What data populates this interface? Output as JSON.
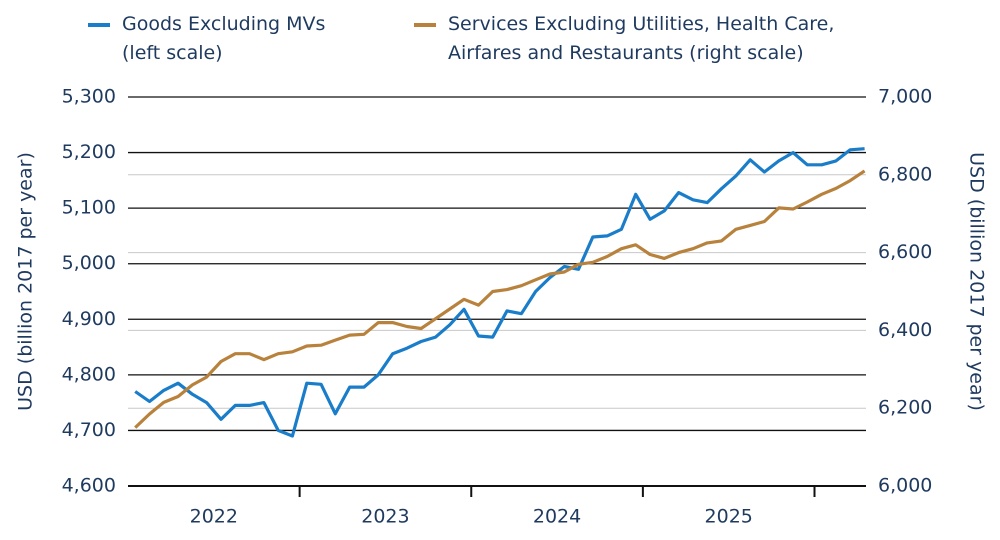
{
  "chart_data": {
    "type": "line",
    "y_label": "USD (billion 2017 per year)",
    "y2_label": "USD (billion 2017 per year)",
    "year_labels": [
      "2022",
      "2023",
      "2024",
      "2025"
    ],
    "year_label_x": [
      2022.5,
      2023.5,
      2024.5,
      2025.5
    ],
    "xlim": [
      2022,
      2026.3
    ],
    "xticks": [
      2023,
      2024,
      2025,
      2026
    ],
    "ylim": [
      4600,
      5300
    ],
    "yticks": [
      {
        "value": 4600,
        "label": "4,600"
      },
      {
        "value": 4700,
        "label": "4,700"
      },
      {
        "value": 4800,
        "label": "4,800"
      },
      {
        "value": 4900,
        "label": "4,900"
      },
      {
        "value": 5000,
        "label": "5,000"
      },
      {
        "value": 5100,
        "label": "5,100"
      },
      {
        "value": 5200,
        "label": "5,200"
      },
      {
        "value": 5300,
        "label": "5,300"
      }
    ],
    "y2lim": [
      6000,
      7000
    ],
    "y2ticks": [
      {
        "value": 6000,
        "label": "6,000"
      },
      {
        "value": 6200,
        "label": "6,200"
      },
      {
        "value": 6400,
        "label": "6,400"
      },
      {
        "value": 6600,
        "label": "6,600"
      },
      {
        "value": 6800,
        "label": "6,800"
      },
      {
        "value": 7000,
        "label": "7,000"
      }
    ],
    "grid": true,
    "y2grid": true,
    "x": [
      2022.042,
      2022.125,
      2022.208,
      2022.292,
      2022.375,
      2022.458,
      2022.542,
      2022.625,
      2022.708,
      2022.792,
      2022.875,
      2022.958,
      2023.042,
      2023.125,
      2023.208,
      2023.292,
      2023.375,
      2023.458,
      2023.542,
      2023.625,
      2023.708,
      2023.792,
      2023.875,
      2023.958,
      2024.042,
      2024.125,
      2024.208,
      2024.292,
      2024.375,
      2024.458,
      2024.542,
      2024.625,
      2024.708,
      2024.792,
      2024.875,
      2024.958,
      2025.042,
      2025.125,
      2025.208,
      2025.292,
      2025.375,
      2025.458,
      2025.542,
      2025.625,
      2025.708,
      2025.792,
      2025.875,
      2025.958,
      2026.042,
      2026.125,
      2026.208,
      2026.292
    ],
    "series": [
      {
        "name": "Goods Excluding MVs (left scale)",
        "color": "#1a7dc9",
        "values": [
          4770,
          4752,
          4772,
          4785,
          4765,
          4750,
          4720,
          4745,
          4745,
          4750,
          4700,
          4690,
          4785,
          4783,
          4730,
          4778,
          4778,
          4800,
          4838,
          4848,
          4860,
          4868,
          4890,
          4918,
          4870,
          4868,
          4915,
          4910,
          4950,
          4975,
          4995,
          4990,
          5048,
          5050,
          5062,
          5125,
          5080,
          5095,
          5128,
          5115,
          5110,
          5135,
          5158,
          5187,
          5165,
          5185,
          5200,
          5178,
          5178,
          5185,
          5205,
          5207
        ]
      },
      {
        "name": "Services Excluding Utilities, Health Care, Airfares and Restaurants (right scale)",
        "color": "#b8823d",
        "axis": "y2",
        "values": [
          6150,
          6185,
          6215,
          6230,
          6260,
          6280,
          6320,
          6340,
          6340,
          6325,
          6340,
          6345,
          6360,
          6362,
          6375,
          6388,
          6390,
          6420,
          6420,
          6410,
          6405,
          6430,
          6455,
          6480,
          6465,
          6500,
          6505,
          6515,
          6530,
          6545,
          6550,
          6570,
          6575,
          6590,
          6610,
          6620,
          6595,
          6585,
          6600,
          6610,
          6625,
          6630,
          6660,
          6670,
          6680,
          6715,
          6712,
          6730,
          6750,
          6765,
          6785,
          6810
        ]
      }
    ]
  }
}
